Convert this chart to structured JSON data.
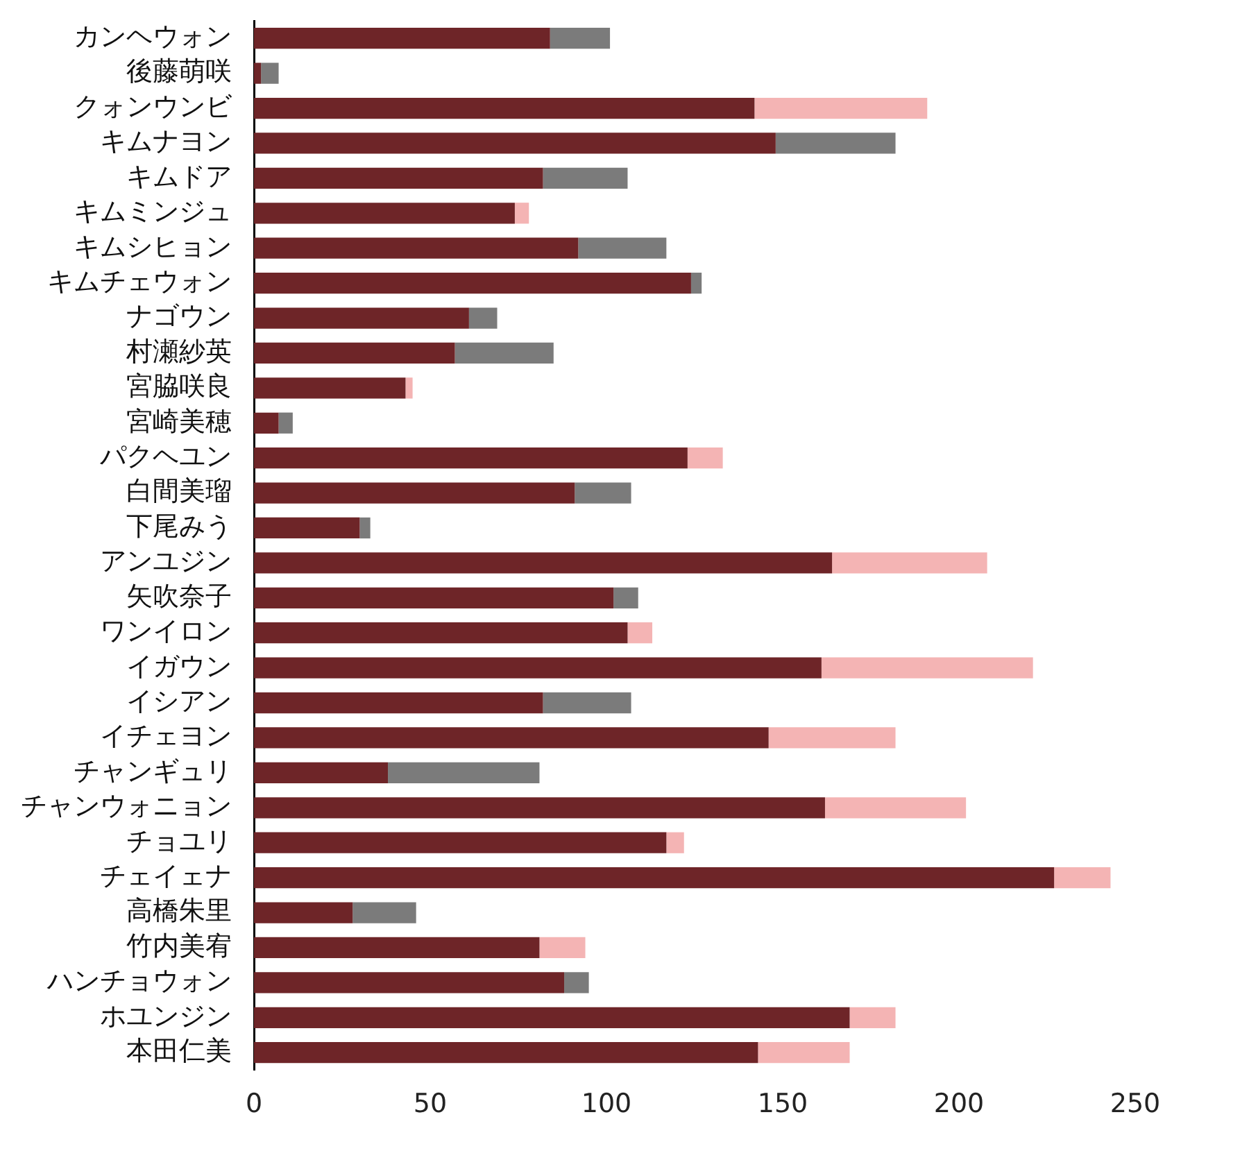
{
  "chart_data": {
    "type": "bar",
    "orientation": "horizontal",
    "stacked": true,
    "categories": [
      "カンヘウォン",
      "後藤萌咲",
      "クォンウンビ",
      "キムナヨン",
      "キムドア",
      "キムミンジュ",
      "キムシヒョン",
      "キムチェウォン",
      "ナゴウン",
      "村瀬紗英",
      "宮脇咲良",
      "宮崎美穂",
      "パクヘユン",
      "白間美瑠",
      "下尾みう",
      "アンユジン",
      "矢吹奈子",
      "ワンイロン",
      "イガウン",
      "イシアン",
      "イチェヨン",
      "チャンギュリ",
      "チャンウォニョン",
      "チョユリ",
      "チェイェナ",
      "高橋朱里",
      "竹内美宥",
      "ハンチョウォン",
      "ホユンジン",
      "本田仁美"
    ],
    "series": [
      {
        "color": "#6e2528",
        "values": [
          84,
          2,
          142,
          148,
          82,
          74,
          92,
          124,
          61,
          57,
          43,
          7,
          123,
          91,
          30,
          164,
          102,
          106,
          161,
          82,
          146,
          38,
          162,
          117,
          227,
          28,
          81,
          88,
          169,
          143
        ]
      },
      {
        "colors": [
          "#7b7b7b",
          "#7b7b7b",
          "#f4b4b4",
          "#7b7b7b",
          "#7b7b7b",
          "#f4b4b4",
          "#7b7b7b",
          "#7b7b7b",
          "#7b7b7b",
          "#7b7b7b",
          "#f4b4b4",
          "#7b7b7b",
          "#f4b4b4",
          "#7b7b7b",
          "#7b7b7b",
          "#f4b4b4",
          "#7b7b7b",
          "#f4b4b4",
          "#f4b4b4",
          "#7b7b7b",
          "#f4b4b4",
          "#7b7b7b",
          "#f4b4b4",
          "#f4b4b4",
          "#f4b4b4",
          "#7b7b7b",
          "#f4b4b4",
          "#7b7b7b",
          "#f4b4b4",
          "#f4b4b4"
        ],
        "values": [
          17,
          5,
          49,
          34,
          24,
          4,
          25,
          3,
          8,
          28,
          2,
          4,
          10,
          16,
          3,
          44,
          7,
          7,
          60,
          25,
          36,
          43,
          40,
          5,
          16,
          18,
          13,
          7,
          13,
          26
        ]
      }
    ],
    "xlim": [
      0,
      250
    ],
    "xticks": [
      0,
      50,
      100,
      150,
      200,
      250
    ]
  }
}
